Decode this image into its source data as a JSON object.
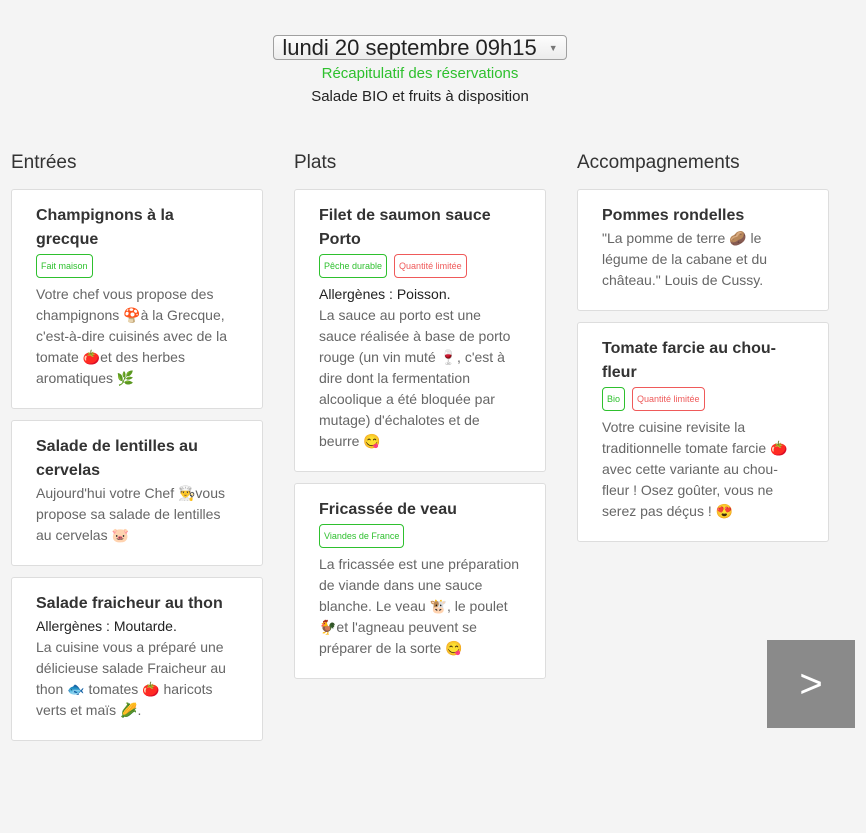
{
  "header": {
    "date_value": "lundi 20 septembre 09h15",
    "recap_link": "Récapitulatif des réservations",
    "info": "Salade BIO et fruits à disposition"
  },
  "colors": {
    "green": "#2ec02e",
    "red": "#ef5a5a",
    "next_button": "#8a8a8a"
  },
  "columns": [
    {
      "title": "Entrées",
      "cards": [
        {
          "title": "Champignons à la grecque",
          "tags": [
            {
              "label": "Fait maison",
              "color": "green"
            }
          ],
          "allergens": "",
          "description": "Votre chef vous propose des champignons 🍄à la Grecque, c'est-à-dire cuisinés avec de la tomate 🍅et des herbes aromatiques 🌿"
        },
        {
          "title": "Salade de lentilles au cervelas",
          "tags": [],
          "allergens": "",
          "description": "Aujourd'hui votre Chef 👨‍🍳vous propose sa salade de lentilles au cervelas 🐷"
        },
        {
          "title": "Salade fraicheur au thon",
          "tags": [],
          "allergens": "Allergènes : Moutarde.",
          "description": "La cuisine vous a préparé une délicieuse salade Fraicheur au thon 🐟 tomates 🍅 haricots verts et maïs 🌽."
        }
      ]
    },
    {
      "title": "Plats",
      "cards": [
        {
          "title": "Filet de saumon sauce Porto",
          "tags": [
            {
              "label": "Pêche durable",
              "color": "green"
            },
            {
              "label": "Quantité limitée",
              "color": "red"
            }
          ],
          "allergens": "Allergènes : Poisson.",
          "description": "La sauce au porto est une sauce réalisée à base de porto rouge (un vin muté 🍷, c'est à dire dont la fermentation alcoolique a été bloquée par mutage) d'échalotes et de beurre 😋"
        },
        {
          "title": "Fricassée de veau",
          "tags": [
            {
              "label": "Viandes de France",
              "color": "green"
            }
          ],
          "allergens": "",
          "description": "La fricassée est une préparation de viande dans une sauce blanche. Le veau 🐮, le poulet 🐓et l'agneau peuvent se préparer de la sorte 😋"
        }
      ]
    },
    {
      "title": "Accompagnements",
      "cards": [
        {
          "title": "Pommes rondelles",
          "tags": [],
          "allergens": "",
          "description": "\"La pomme de terre 🥔 le légume de la cabane et du château.\" Louis de Cussy."
        },
        {
          "title": "Tomate farcie au chou-fleur",
          "tags": [
            {
              "label": "Bio",
              "color": "green"
            },
            {
              "label": "Quantité limitée",
              "color": "red"
            }
          ],
          "allergens": "",
          "description": "Votre cuisine revisite la traditionnelle tomate farcie 🍅 avec cette variante au chou-fleur ! Osez goûter, vous ne serez pas déçus ! 😍"
        }
      ]
    }
  ],
  "next_button": {
    "label": ">",
    "icon": "chevron-right-icon"
  }
}
